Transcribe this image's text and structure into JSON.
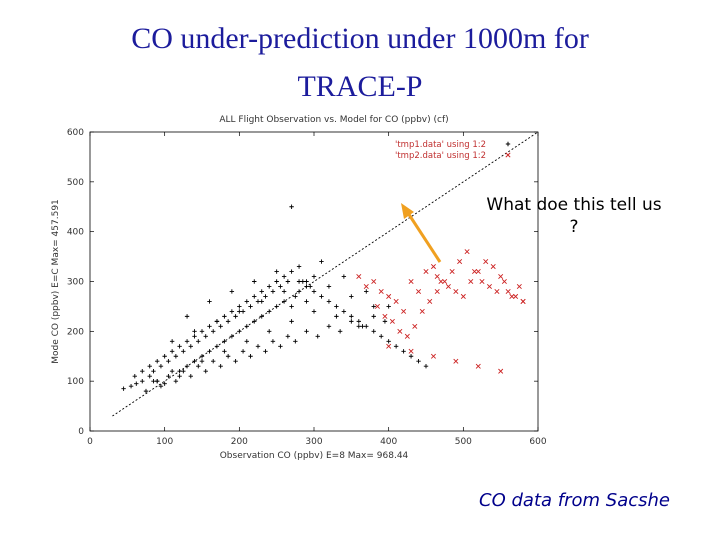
{
  "slide": {
    "title_line1": "CO under-prediction under 1000m for",
    "title_line2": "TRACE-P",
    "question": "What doe this tell us ?",
    "source": "CO data from Sacshe"
  },
  "colors": {
    "title": "#1c1c9c",
    "series1": "#000000",
    "series2": "#cc2222",
    "arrow": "#f0a020",
    "source": "#00008b"
  },
  "chart_data": {
    "type": "scatter",
    "title": "ALL Flight Observation vs. Model for CO (ppbv) (cf)",
    "xlabel": "Observation CO (ppbv) E=8 Max= 968.44",
    "ylabel": "Mode CO (ppbv) E=C Max= 457.591",
    "xlim": [
      0,
      600
    ],
    "ylim": [
      0,
      600
    ],
    "xticks": [
      0,
      100,
      200,
      300,
      400,
      500,
      600
    ],
    "yticks": [
      0,
      100,
      200,
      300,
      400,
      500,
      600
    ],
    "grid": false,
    "legend_position": "top-right",
    "series": [
      {
        "name": "'tmp1.data' using 1:2",
        "marker": "+",
        "color": "#000000",
        "x": [
          45,
          55,
          62,
          70,
          75,
          80,
          85,
          90,
          95,
          100,
          105,
          110,
          115,
          120,
          125,
          130,
          135,
          140,
          145,
          150,
          155,
          160,
          165,
          170,
          175,
          180,
          185,
          190,
          195,
          200,
          205,
          210,
          215,
          220,
          225,
          230,
          235,
          240,
          245,
          250,
          255,
          260,
          265,
          270,
          275,
          280,
          285,
          290,
          295,
          300,
          60,
          70,
          80,
          90,
          100,
          110,
          120,
          130,
          140,
          150,
          160,
          170,
          180,
          190,
          200,
          210,
          220,
          230,
          240,
          250,
          260,
          270,
          280,
          290,
          300,
          310,
          320,
          330,
          340,
          350,
          360,
          370,
          380,
          390,
          400,
          410,
          420,
          430,
          440,
          450,
          130,
          160,
          190,
          220,
          250,
          280,
          310,
          340,
          370,
          400,
          110,
          140,
          170,
          200,
          230,
          260,
          290,
          320,
          350,
          380,
          90,
          120,
          150,
          180,
          210,
          240,
          270,
          300,
          330,
          360,
          85,
          95,
          105,
          115,
          125,
          135,
          145,
          155,
          165,
          175,
          185,
          195,
          205,
          215,
          225,
          235,
          245,
          255,
          265,
          275,
          290,
          305,
          320,
          335,
          350,
          365,
          380,
          395,
          270
        ],
        "y": [
          85,
          90,
          95,
          100,
          80,
          110,
          120,
          100,
          130,
          95,
          140,
          120,
          150,
          110,
          160,
          130,
          170,
          140,
          180,
          150,
          190,
          160,
          200,
          170,
          210,
          180,
          220,
          190,
          230,
          200,
          240,
          210,
          250,
          220,
          260,
          230,
          270,
          240,
          280,
          250,
          290,
          260,
          300,
          250,
          270,
          280,
          300,
          260,
          290,
          310,
          110,
          120,
          130,
          140,
          150,
          160,
          170,
          180,
          190,
          200,
          210,
          220,
          230,
          240,
          250,
          260,
          270,
          280,
          290,
          300,
          310,
          320,
          300,
          290,
          280,
          270,
          260,
          250,
          240,
          230,
          220,
          210,
          200,
          190,
          180,
          170,
          160,
          150,
          140,
          130,
          230,
          260,
          280,
          300,
          320,
          330,
          340,
          310,
          280,
          250,
          180,
          200,
          220,
          240,
          260,
          280,
          300,
          290,
          270,
          250,
          100,
          120,
          140,
          160,
          180,
          200,
          220,
          240,
          230,
          210,
          100,
          90,
          110,
          100,
          120,
          110,
          130,
          120,
          140,
          130,
          150,
          140,
          160,
          150,
          170,
          160,
          180,
          170,
          190,
          180,
          200,
          190,
          210,
          200,
          220,
          210,
          230,
          220,
          450
        ]
      },
      {
        "name": "'tmp2.data' using 1:2",
        "marker": "x",
        "color": "#cc2222",
        "x": [
          360,
          370,
          380,
          390,
          400,
          410,
          420,
          430,
          440,
          450,
          460,
          465,
          470,
          480,
          490,
          500,
          510,
          520,
          530,
          540,
          550,
          560,
          570,
          580,
          385,
          395,
          405,
          415,
          425,
          435,
          445,
          455,
          465,
          475,
          485,
          495,
          505,
          515,
          525,
          535,
          545,
          555,
          565,
          575,
          400,
          430,
          460,
          490,
          520,
          550,
          580
        ],
        "y": [
          310,
          290,
          300,
          280,
          270,
          260,
          240,
          300,
          280,
          320,
          330,
          310,
          300,
          290,
          280,
          270,
          300,
          320,
          340,
          330,
          310,
          280,
          270,
          260,
          250,
          230,
          220,
          200,
          190,
          210,
          240,
          260,
          280,
          300,
          320,
          340,
          360,
          320,
          300,
          290,
          280,
          300,
          270,
          290,
          170,
          160,
          150,
          140,
          130,
          120,
          260
        ]
      }
    ],
    "fit_line": {
      "label": "1:1",
      "x": [
        30,
        600
      ],
      "y": [
        30,
        600
      ]
    }
  }
}
